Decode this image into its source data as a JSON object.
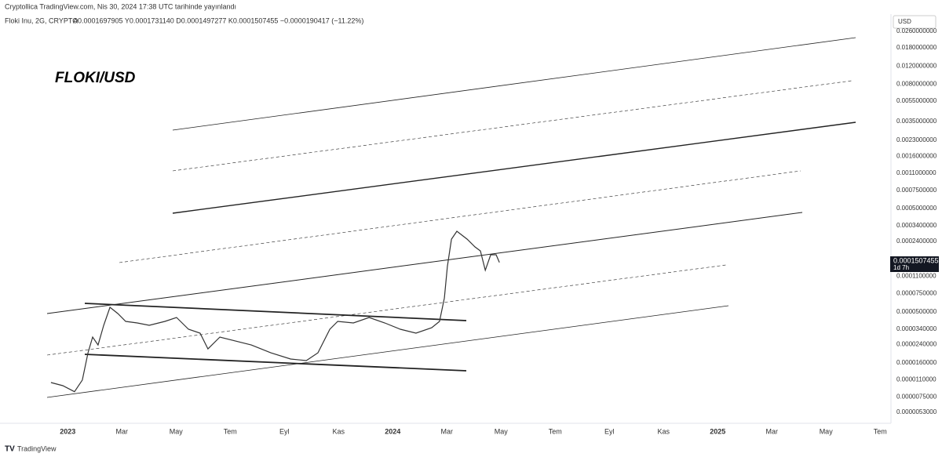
{
  "header": {
    "published": "Cryptollica TradingView.com, Nis 30, 2024 17:38 UTC tarihinde yayınlandı",
    "symbol": "Floki Inu, 2G, CRYPTO",
    "ohlc": "A0.0001697905 Y0.0001731140 D0.0001497277 K0.0001507455 −0.0000190417 (−11.22%)"
  },
  "footer": {
    "brand": "TradingView"
  },
  "chart_data": {
    "type": "line",
    "title": "FLOKI/USD",
    "currency": "USD",
    "last_price_label": "0.0001507455",
    "countdown": "1d 7h",
    "log_scale": true,
    "grid": false,
    "series": [
      {
        "name": "Floki Inu",
        "color": "#333333",
        "x": [
          -0.62,
          -0.18,
          0.25,
          0.54,
          0.75,
          0.92,
          1.12,
          1.33,
          1.56,
          1.85,
          2.14,
          2.57,
          3.01,
          3.59,
          4.02,
          4.46,
          4.89,
          5.18,
          5.62,
          6.2,
          6.78,
          7.5,
          8.23,
          8.81,
          9.24,
          9.68,
          9.97,
          10.55,
          11.13,
          11.71,
          12.28,
          12.86,
          13.44,
          13.73,
          13.91,
          14.02,
          14.17,
          14.37,
          14.75,
          15.04,
          15.24,
          15.42,
          15.62,
          15.82,
          15.94
        ],
        "values": [
          1.03e-05,
          9.6e-06,
          8.4e-06,
          1.09e-05,
          2e-05,
          2.84e-05,
          2.38e-05,
          3.69e-05,
          5.52e-05,
          4.8e-05,
          4.03e-05,
          3.89e-05,
          3.69e-05,
          4.03e-05,
          4.4e-05,
          3.38e-05,
          3.1e-05,
          2.18e-05,
          2.84e-05,
          2.6e-05,
          2.38e-05,
          2e-05,
          1.74e-05,
          1.68e-05,
          2e-05,
          3.38e-05,
          4.03e-05,
          3.89e-05,
          4.4e-05,
          3.89e-05,
          3.38e-05,
          3.1e-05,
          3.5e-05,
          4.03e-05,
          6.8e-05,
          0.000137,
          0.000252,
          0.000301,
          0.000252,
          0.000212,
          0.000194,
          0.000126,
          0.000178,
          0.000178,
          0.00015
        ]
      }
    ],
    "xlim": [
      -2.5,
      30.4
    ],
    "xticks": [
      {
        "value": 0,
        "label": "2023"
      },
      {
        "value": 2,
        "label": "Mar"
      },
      {
        "value": 4,
        "label": "May"
      },
      {
        "value": 6,
        "label": "Tem"
      },
      {
        "value": 8,
        "label": "Eyl"
      },
      {
        "value": 10,
        "label": "Kas"
      },
      {
        "value": 12,
        "label": "2024"
      },
      {
        "value": 14,
        "label": "Mar"
      },
      {
        "value": 16,
        "label": "May"
      },
      {
        "value": 18,
        "label": "Tem"
      },
      {
        "value": 20,
        "label": "Eyl"
      },
      {
        "value": 22,
        "label": "Kas"
      },
      {
        "value": 24,
        "label": "2025"
      },
      {
        "value": 26,
        "label": "Mar"
      },
      {
        "value": 28,
        "label": "May"
      },
      {
        "value": 30,
        "label": "Tem"
      }
    ],
    "ylim": [
      4.15e-06,
      0.0356
    ],
    "yticks": [
      {
        "value": 0.026,
        "label": "0.0260000000"
      },
      {
        "value": 0.018,
        "label": "0.0180000000"
      },
      {
        "value": 0.012,
        "label": "0.0120000000"
      },
      {
        "value": 0.008,
        "label": "0.0080000000"
      },
      {
        "value": 0.0055,
        "label": "0.0055000000"
      },
      {
        "value": 0.0035,
        "label": "0.0035000000"
      },
      {
        "value": 0.0023,
        "label": "0.0023000000"
      },
      {
        "value": 0.0016,
        "label": "0.0016000000"
      },
      {
        "value": 0.0011,
        "label": "0.0011000000"
      },
      {
        "value": 0.00075,
        "label": "0.0007500000"
      },
      {
        "value": 0.0005,
        "label": "0.0005000000"
      },
      {
        "value": 0.00034,
        "label": "0.0003400000"
      },
      {
        "value": 0.00024,
        "label": "0.0002400000"
      },
      {
        "value": 0.00011,
        "label": "0.0001100000"
      },
      {
        "value": 7.5e-05,
        "label": "0.0000750000"
      },
      {
        "value": 5e-05,
        "label": "0.0000500000"
      },
      {
        "value": 3.4e-05,
        "label": "0.0000340000"
      },
      {
        "value": 2.4e-05,
        "label": "0.0000240000"
      },
      {
        "value": 1.6e-05,
        "label": "0.0000160000"
      },
      {
        "value": 1.1e-05,
        "label": "0.0000110000"
      },
      {
        "value": 7.5e-06,
        "label": "0.0000075000"
      },
      {
        "value": 5.3e-06,
        "label": "0.0000053000"
      }
    ]
  }
}
